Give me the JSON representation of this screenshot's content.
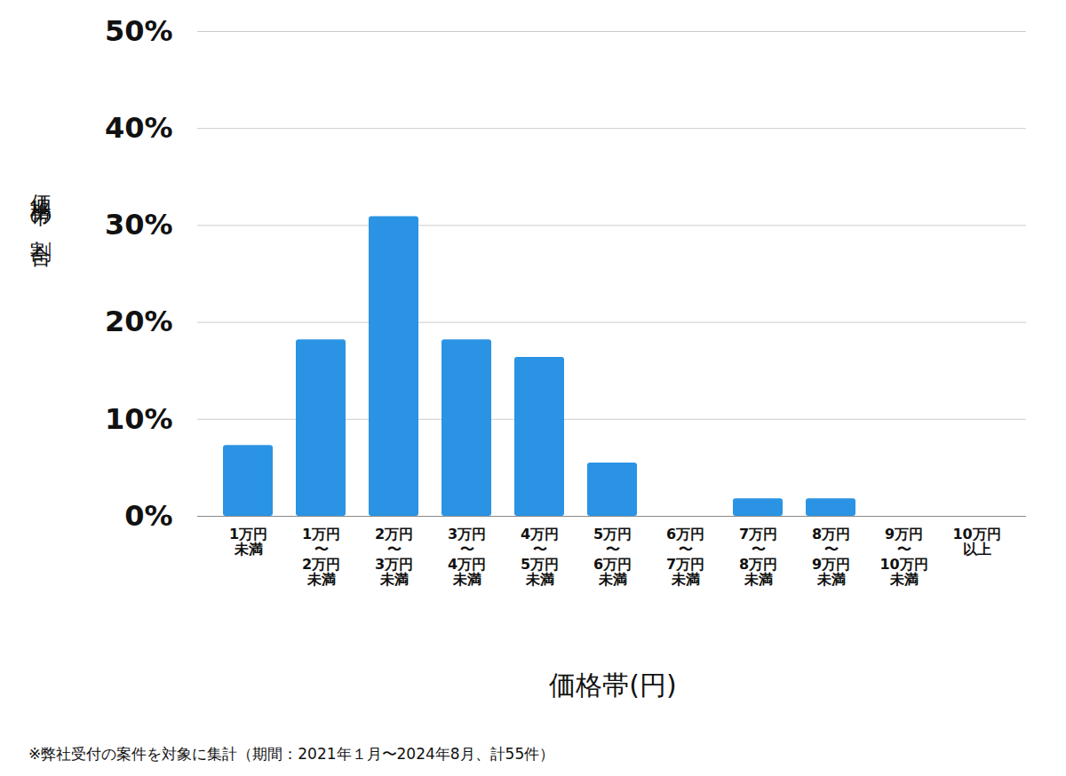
{
  "chart_data": {
    "type": "bar",
    "categories": [
      "1万円\n未満",
      "1万円\n〜\n2万円\n未満",
      "2万円\n〜\n3万円\n未満",
      "3万円\n〜\n4万円\n未満",
      "4万円\n〜\n5万円\n未満",
      "5万円\n〜\n6万円\n未満",
      "6万円\n〜\n7万円\n未満",
      "7万円\n〜\n8万円\n未満",
      "8万円\n〜\n9万円\n未満",
      "9万円\n〜\n10万円\n未満",
      "10万円\n以上"
    ],
    "values": [
      7.3,
      18.2,
      30.9,
      18.2,
      16.4,
      5.5,
      0,
      1.8,
      1.8,
      0,
      0
    ],
    "color": "#2a93e4",
    "ylim": [
      0,
      50
    ],
    "yticks": [
      {
        "value": 0,
        "label": "0%"
      },
      {
        "value": 10,
        "label": "10%"
      },
      {
        "value": 20,
        "label": "20%"
      },
      {
        "value": 30,
        "label": "30%"
      },
      {
        "value": 40,
        "label": "40%"
      },
      {
        "value": 50,
        "label": "50%"
      }
    ],
    "grid": true,
    "y_label": "価格帯の割合",
    "x_label": "価格帯(円)",
    "caption": "※弊社受付の案件を対象に集計（期間：2021年１月〜2024年8月、計55件）"
  }
}
